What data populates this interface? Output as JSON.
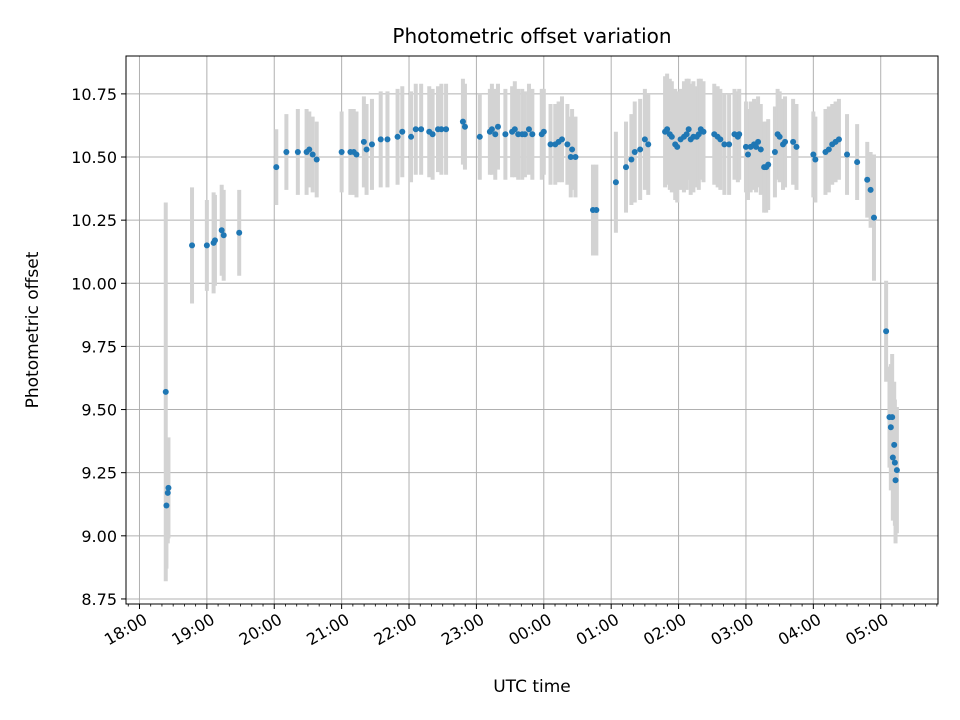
{
  "chart_data": {
    "type": "scatter",
    "title": "Photometric offset variation",
    "xlabel": "UTC time",
    "ylabel": "Photometric offset",
    "grid": true,
    "x_axis": {
      "unit": "hours since 18:00 UTC",
      "range": [
        -0.2,
        11.85
      ],
      "ticks": [
        0,
        1,
        2,
        3,
        4,
        5,
        6,
        7,
        8,
        9,
        10,
        11
      ],
      "tick_labels": [
        "18:00",
        "19:00",
        "20:00",
        "21:00",
        "22:00",
        "23:00",
        "00:00",
        "01:00",
        "02:00",
        "03:00",
        "04:00",
        "05:00"
      ]
    },
    "y_axis": {
      "range": [
        8.73,
        10.9
      ],
      "ticks": [
        8.75,
        9.0,
        9.25,
        9.5,
        9.75,
        10.0,
        10.25,
        10.5,
        10.75
      ],
      "tick_labels": [
        "8.75",
        "9.00",
        "9.25",
        "9.50",
        "9.75",
        "10.00",
        "10.25",
        "10.50",
        "10.75"
      ]
    },
    "colors": {
      "points": "#1f77b4",
      "errorbars": "#d3d3d3",
      "grid": "#b0b0b0"
    },
    "series": [
      {
        "points": [
          [
            0.39,
            9.57,
            0.75
          ],
          [
            0.4,
            9.12,
            0.25
          ],
          [
            0.42,
            9.17,
            0.2
          ],
          [
            0.43,
            9.19,
            0.2
          ],
          [
            0.78,
            10.15,
            0.23
          ],
          [
            1.0,
            10.15,
            0.18
          ],
          [
            1.1,
            10.16,
            0.2
          ],
          [
            1.12,
            10.17,
            0.18
          ],
          [
            1.22,
            10.21,
            0.18
          ],
          [
            1.25,
            10.19,
            0.18
          ],
          [
            1.48,
            10.2,
            0.17
          ],
          [
            2.03,
            10.46,
            0.15
          ],
          [
            2.18,
            10.52,
            0.15
          ],
          [
            2.35,
            10.52,
            0.17
          ],
          [
            2.48,
            10.52,
            0.17
          ],
          [
            2.52,
            10.53,
            0.15
          ],
          [
            2.57,
            10.51,
            0.15
          ],
          [
            2.63,
            10.49,
            0.15
          ],
          [
            3.0,
            10.52,
            0.16
          ],
          [
            3.13,
            10.52,
            0.17
          ],
          [
            3.18,
            10.52,
            0.17
          ],
          [
            3.22,
            10.51,
            0.17
          ],
          [
            3.33,
            10.56,
            0.18
          ],
          [
            3.37,
            10.53,
            0.18
          ],
          [
            3.45,
            10.55,
            0.18
          ],
          [
            3.58,
            10.57,
            0.19
          ],
          [
            3.68,
            10.57,
            0.19
          ],
          [
            3.83,
            10.58,
            0.19
          ],
          [
            3.9,
            10.6,
            0.18
          ],
          [
            4.03,
            10.58,
            0.18
          ],
          [
            4.1,
            10.61,
            0.18
          ],
          [
            4.18,
            10.61,
            0.18
          ],
          [
            4.3,
            10.6,
            0.18
          ],
          [
            4.35,
            10.59,
            0.18
          ],
          [
            4.43,
            10.61,
            0.17
          ],
          [
            4.48,
            10.61,
            0.18
          ],
          [
            4.55,
            10.61,
            0.18
          ],
          [
            4.8,
            10.64,
            0.17
          ],
          [
            4.83,
            10.62,
            0.17
          ],
          [
            5.05,
            10.58,
            0.17
          ],
          [
            5.2,
            10.6,
            0.17
          ],
          [
            5.23,
            10.61,
            0.18
          ],
          [
            5.28,
            10.59,
            0.18
          ],
          [
            5.32,
            10.62,
            0.17
          ],
          [
            5.43,
            10.59,
            0.18
          ],
          [
            5.53,
            10.6,
            0.18
          ],
          [
            5.57,
            10.61,
            0.19
          ],
          [
            5.62,
            10.59,
            0.18
          ],
          [
            5.68,
            10.59,
            0.18
          ],
          [
            5.72,
            10.59,
            0.17
          ],
          [
            5.78,
            10.61,
            0.18
          ],
          [
            5.83,
            10.59,
            0.18
          ],
          [
            5.97,
            10.59,
            0.18
          ],
          [
            6.0,
            10.6,
            0.17
          ],
          [
            6.1,
            10.55,
            0.16
          ],
          [
            6.17,
            10.55,
            0.16
          ],
          [
            6.22,
            10.56,
            0.16
          ],
          [
            6.27,
            10.57,
            0.17
          ],
          [
            6.35,
            10.55,
            0.16
          ],
          [
            6.4,
            10.5,
            0.16
          ],
          [
            6.42,
            10.53,
            0.16
          ],
          [
            6.47,
            10.5,
            0.16
          ],
          [
            6.73,
            10.29,
            0.18
          ],
          [
            6.78,
            10.29,
            0.18
          ],
          [
            7.07,
            10.4,
            0.2
          ],
          [
            7.22,
            10.46,
            0.18
          ],
          [
            7.3,
            10.49,
            0.18
          ],
          [
            7.35,
            10.52,
            0.2
          ],
          [
            7.43,
            10.53,
            0.2
          ],
          [
            7.5,
            10.57,
            0.2
          ],
          [
            7.55,
            10.55,
            0.2
          ],
          [
            7.8,
            10.6,
            0.22
          ],
          [
            7.83,
            10.61,
            0.22
          ],
          [
            7.87,
            10.59,
            0.22
          ],
          [
            7.9,
            10.58,
            0.22
          ],
          [
            7.95,
            10.55,
            0.22
          ],
          [
            7.98,
            10.54,
            0.22
          ],
          [
            8.03,
            10.57,
            0.2
          ],
          [
            8.08,
            10.58,
            0.22
          ],
          [
            8.12,
            10.59,
            0.22
          ],
          [
            8.15,
            10.61,
            0.2
          ],
          [
            8.18,
            10.57,
            0.22
          ],
          [
            8.22,
            10.58,
            0.22
          ],
          [
            8.27,
            10.58,
            0.2
          ],
          [
            8.3,
            10.59,
            0.22
          ],
          [
            8.33,
            10.61,
            0.2
          ],
          [
            8.37,
            10.6,
            0.2
          ],
          [
            8.53,
            10.59,
            0.2
          ],
          [
            8.58,
            10.58,
            0.2
          ],
          [
            8.62,
            10.57,
            0.2
          ],
          [
            8.68,
            10.55,
            0.2
          ],
          [
            8.75,
            10.55,
            0.2
          ],
          [
            8.83,
            10.59,
            0.18
          ],
          [
            8.88,
            10.58,
            0.18
          ],
          [
            8.9,
            10.59,
            0.18
          ],
          [
            9.0,
            10.54,
            0.18
          ],
          [
            9.03,
            10.51,
            0.18
          ],
          [
            9.07,
            10.54,
            0.18
          ],
          [
            9.12,
            10.55,
            0.18
          ],
          [
            9.15,
            10.54,
            0.18
          ],
          [
            9.18,
            10.56,
            0.18
          ],
          [
            9.22,
            10.53,
            0.18
          ],
          [
            9.27,
            10.46,
            0.18
          ],
          [
            9.3,
            10.46,
            0.18
          ],
          [
            9.33,
            10.47,
            0.18
          ],
          [
            9.43,
            10.52,
            0.18
          ],
          [
            9.47,
            10.59,
            0.18
          ],
          [
            9.5,
            10.58,
            0.18
          ],
          [
            9.55,
            10.55,
            0.18
          ],
          [
            9.58,
            10.56,
            0.18
          ],
          [
            9.7,
            10.56,
            0.17
          ],
          [
            9.75,
            10.54,
            0.17
          ],
          [
            10.0,
            10.51,
            0.17
          ],
          [
            10.03,
            10.49,
            0.17
          ],
          [
            10.18,
            10.52,
            0.17
          ],
          [
            10.23,
            10.53,
            0.17
          ],
          [
            10.28,
            10.55,
            0.16
          ],
          [
            10.33,
            10.56,
            0.16
          ],
          [
            10.38,
            10.57,
            0.16
          ],
          [
            10.5,
            10.51,
            0.16
          ],
          [
            10.65,
            10.48,
            0.15
          ],
          [
            10.8,
            10.41,
            0.15
          ],
          [
            10.85,
            10.37,
            0.15
          ],
          [
            10.9,
            10.26,
            0.25
          ],
          [
            11.08,
            9.81,
            0.2
          ],
          [
            11.13,
            9.47,
            0.2
          ],
          [
            11.15,
            9.43,
            0.25
          ],
          [
            11.17,
            9.47,
            0.25
          ],
          [
            11.18,
            9.31,
            0.25
          ],
          [
            11.2,
            9.36,
            0.25
          ],
          [
            11.21,
            9.29,
            0.25
          ],
          [
            11.22,
            9.22,
            0.25
          ],
          [
            11.24,
            9.26,
            0.25
          ]
        ]
      }
    ]
  }
}
